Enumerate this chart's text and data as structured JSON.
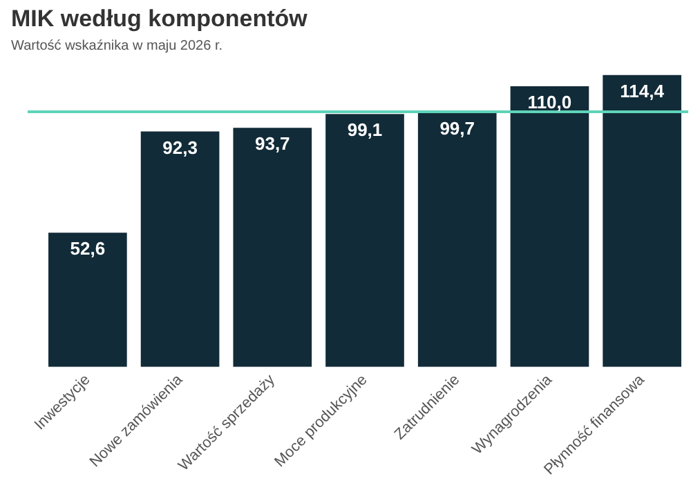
{
  "chart_data": {
    "type": "bar",
    "title": "MIK według komponentów",
    "subtitle": "Wartość wskaźnika w maju 2026 r.",
    "categories": [
      "Inwestycje",
      "Nowe zamówienia",
      "Wartość sprzedaży",
      "Moce produkcyjne",
      "Zatrudnienie",
      "Wynagrodzenia",
      "Płynność finansowa"
    ],
    "values": [
      52.6,
      92.3,
      93.7,
      99.1,
      99.7,
      110.0,
      114.4
    ],
    "value_labels": [
      "52,6",
      "92,3",
      "93,7",
      "99,1",
      "99,7",
      "110,0",
      "114,4"
    ],
    "color": "#122b38",
    "tick_labels": "x",
    "grid": false,
    "legend": false,
    "ref_lines": [
      {
        "axis": "y",
        "value": 100,
        "color": "#5fd3b8"
      }
    ]
  }
}
